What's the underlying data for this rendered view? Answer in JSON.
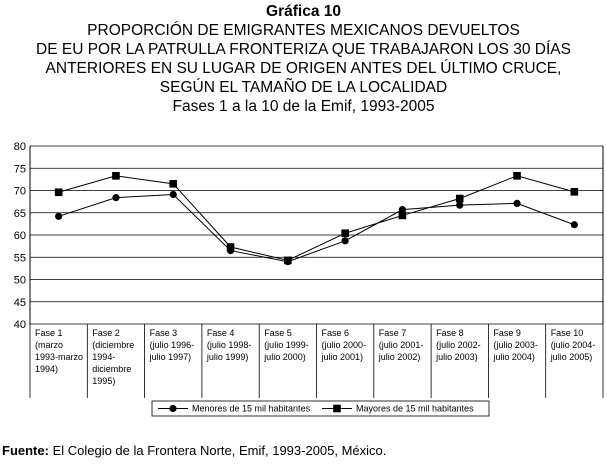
{
  "chart_data": {
    "type": "line",
    "title_lines": [
      "Gráfica 10",
      "PROPORCIÓN DE EMIGRANTES MEXICANOS DEVUELTOS",
      "DE EU POR LA PATRULLA FRONTERIZA QUE TRABAJARON LOS 30 DÍAS",
      "ANTERIORES EN SU LUGAR DE ORIGEN ANTES DEL ÚLTIMO CRUCE,",
      "SEGÚN EL TAMAÑO DE LA LOCALIDAD",
      "Fases 1 a la 10 de la Emif, 1993-2005"
    ],
    "categories": [
      [
        "Fase 1",
        "(marzo",
        "1993-marzo",
        "1994)"
      ],
      [
        "Fase 2",
        "(diciembre",
        "1994-",
        "diciembre",
        "1995)"
      ],
      [
        "Fase 3",
        "(julio 1996-",
        "julio 1997)"
      ],
      [
        "Fase 4",
        "(julio 1998-",
        "julio 1999)"
      ],
      [
        "Fase 5",
        "(julio 1999-",
        "julio 2000)"
      ],
      [
        "Fase 6",
        "(julio 2000-",
        "julio 2001)"
      ],
      [
        "Fase 7",
        "(julio 2001-",
        "julio 2002)"
      ],
      [
        "Fase 8",
        "(julio 2002-",
        "julio 2003)"
      ],
      [
        "Fase 9",
        "(julio 2003-",
        "julio 2004)"
      ],
      [
        "Fase 10",
        "(julio 2004-",
        "julio 2005)"
      ]
    ],
    "series": [
      {
        "name": "Menores de 15 mil habitantes",
        "marker": "circle",
        "values": [
          64.2,
          68.4,
          69.1,
          56.5,
          54.0,
          58.7,
          65.7,
          66.7,
          67.1,
          62.3
        ]
      },
      {
        "name": "Mayores de 15 mil habitantes",
        "marker": "square",
        "values": [
          69.6,
          73.3,
          71.5,
          57.3,
          54.3,
          60.4,
          64.4,
          68.2,
          73.3,
          69.7
        ]
      }
    ],
    "ylim": [
      40,
      80
    ],
    "yticks": [
      40,
      45,
      50,
      55,
      60,
      65,
      70,
      75,
      80
    ],
    "grid": true,
    "legend_position": "bottom"
  },
  "source": {
    "label": "Fuente:",
    "text": " El Colegio de la Frontera Norte, Emif, 1993-2005, México."
  }
}
